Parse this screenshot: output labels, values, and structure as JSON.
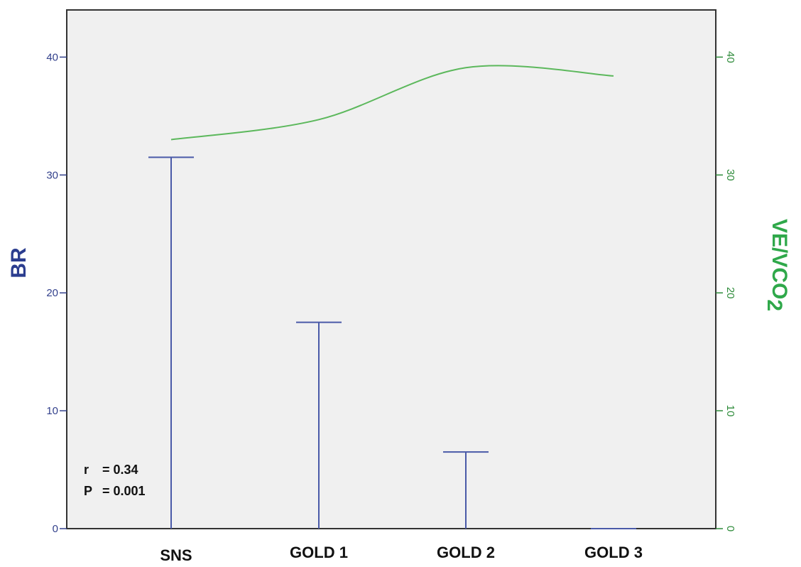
{
  "chart_data": {
    "type": "bar",
    "categories": [
      "SNS",
      "GOLD 1",
      "GOLD 2",
      "GOLD 3"
    ],
    "left_axis": {
      "label": "BR",
      "ylim": [
        0,
        44
      ],
      "ticks": [
        0,
        10,
        20,
        30,
        40
      ],
      "color": "#33418c"
    },
    "right_axis": {
      "label_main": "VE/VCO",
      "label_sub": "2",
      "ylim": [
        0,
        44
      ],
      "ticks": [
        0,
        10,
        20,
        30,
        40
      ],
      "color": "#2e8b3a"
    },
    "series": [
      {
        "name": "BR",
        "axis": "left",
        "style": "drop-line",
        "values": [
          31.5,
          17.5,
          6.5,
          0
        ],
        "color": "#4a5aa8"
      },
      {
        "name": "VE/VCO2",
        "axis": "right",
        "style": "smooth-line",
        "values": [
          33,
          34.7,
          39.1,
          38.4
        ],
        "color": "#5cb85c"
      }
    ],
    "annotation": {
      "r_label": "r",
      "r_value": "= 0.34",
      "p_label": "P",
      "p_value": "= 0.001"
    },
    "plot_background": "#f0f0f0",
    "grid": false
  }
}
